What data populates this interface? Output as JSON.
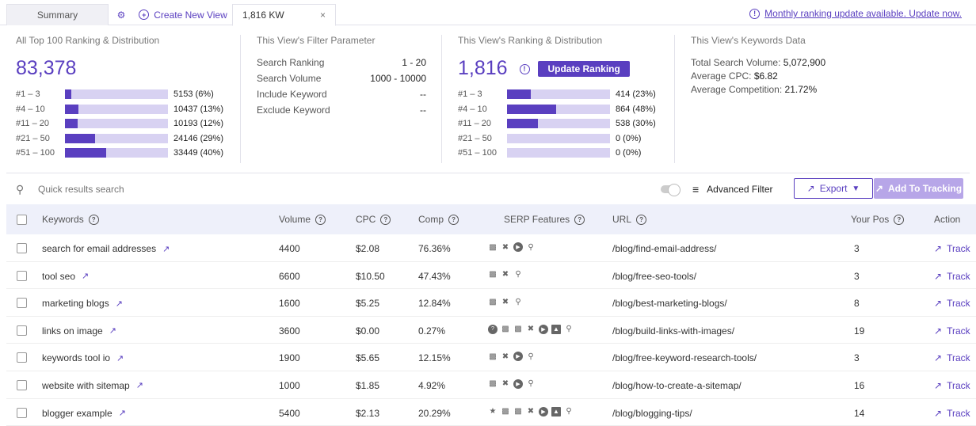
{
  "tabs": {
    "summary": "Summary",
    "create": "Create New View",
    "active": "1,816 KW",
    "close": "×"
  },
  "notice": "Monthly ranking update available. Update now.",
  "stats": {
    "top100": {
      "title": "All Top 100 Ranking & Distribution",
      "total": "83,378",
      "rows": [
        {
          "label": "#1 – 3",
          "value": "5153 (6%)",
          "pct": 0.06
        },
        {
          "label": "#4 – 10",
          "value": "10437 (13%)",
          "pct": 0.13
        },
        {
          "label": "#11 – 20",
          "value": "10193 (12%)",
          "pct": 0.12
        },
        {
          "label": "#21 – 50",
          "value": "24146 (29%)",
          "pct": 0.29
        },
        {
          "label": "#51 – 100",
          "value": "33449 (40%)",
          "pct": 0.4
        }
      ]
    },
    "filter": {
      "title": "This View's Filter Parameter",
      "rows": [
        {
          "label": "Search Ranking",
          "value": "1 - 20"
        },
        {
          "label": "Search Volume",
          "value": "1000 - 10000"
        },
        {
          "label": "Include Keyword",
          "value": "--"
        },
        {
          "label": "Exclude Keyword",
          "value": "--"
        }
      ]
    },
    "view": {
      "title": "This View's Ranking & Distribution",
      "total": "1,816",
      "button": "Update Ranking",
      "rows": [
        {
          "label": "#1 – 3",
          "value": "414 (23%)",
          "pct": 0.23
        },
        {
          "label": "#4 – 10",
          "value": "864 (48%)",
          "pct": 0.48
        },
        {
          "label": "#11 – 20",
          "value": "538 (30%)",
          "pct": 0.3
        },
        {
          "label": "#21 – 50",
          "value": "0 (0%)",
          "pct": 0
        },
        {
          "label": "#51 – 100",
          "value": "0 (0%)",
          "pct": 0
        }
      ]
    },
    "keywords": {
      "title": "This View's Keywords Data",
      "rows": [
        {
          "label": "Total Search Volume:",
          "value": "5,072,900"
        },
        {
          "label": "Average CPC:",
          "value": "$6.82"
        },
        {
          "label": "Average Competition:",
          "value": "21.72%"
        }
      ]
    }
  },
  "toolbar": {
    "search_placeholder": "Quick results search",
    "advanced": "Advanced Filter",
    "export": "Export",
    "add": "Add To Tracking"
  },
  "columns": {
    "keywords": "Keywords",
    "volume": "Volume",
    "cpc": "CPC",
    "comp": "Comp",
    "serp": "SERP Features",
    "url": "URL",
    "pos": "Your Pos",
    "action": "Action"
  },
  "rows": [
    {
      "keyword": "search for email addresses",
      "volume": "4400",
      "cpc": "$2.08",
      "comp": "76.36%",
      "serp": [
        "related-icon",
        "carousel-icon",
        "video-icon",
        "search-icon"
      ],
      "url": "/blog/find-email-address/",
      "pos": "3",
      "action": "Track"
    },
    {
      "keyword": "tool seo",
      "volume": "6600",
      "cpc": "$10.50",
      "comp": "47.43%",
      "serp": [
        "related-icon",
        "carousel-icon",
        "search-icon"
      ],
      "url": "/blog/free-seo-tools/",
      "pos": "3",
      "action": "Track"
    },
    {
      "keyword": "marketing blogs",
      "volume": "1600",
      "cpc": "$5.25",
      "comp": "12.84%",
      "serp": [
        "related-icon",
        "carousel-icon",
        "search-icon"
      ],
      "url": "/blog/best-marketing-blogs/",
      "pos": "8",
      "action": "Track"
    },
    {
      "keyword": "links on image",
      "volume": "3600",
      "cpc": "$0.00",
      "comp": "0.27%",
      "serp": [
        "question-icon",
        "related-icon",
        "related-icon",
        "carousel-icon",
        "video-icon",
        "image-icon",
        "search-icon"
      ],
      "url": "/blog/build-links-with-images/",
      "pos": "19",
      "action": "Track"
    },
    {
      "keyword": "keywords tool io",
      "volume": "1900",
      "cpc": "$5.65",
      "comp": "12.15%",
      "serp": [
        "related-icon",
        "carousel-icon",
        "video-icon",
        "search-icon"
      ],
      "url": "/blog/free-keyword-research-tools/",
      "pos": "3",
      "action": "Track"
    },
    {
      "keyword": "website with sitemap",
      "volume": "1000",
      "cpc": "$1.85",
      "comp": "4.92%",
      "serp": [
        "related-icon",
        "carousel-icon",
        "video-icon",
        "search-icon"
      ],
      "url": "/blog/how-to-create-a-sitemap/",
      "pos": "16",
      "action": "Track"
    },
    {
      "keyword": "blogger example",
      "volume": "5400",
      "cpc": "$2.13",
      "comp": "20.29%",
      "serp": [
        "star-icon",
        "related-icon",
        "related-icon",
        "carousel-icon",
        "video-icon",
        "image-icon",
        "search-icon"
      ],
      "url": "/blog/blogging-tips/",
      "pos": "14",
      "action": "Track"
    }
  ]
}
